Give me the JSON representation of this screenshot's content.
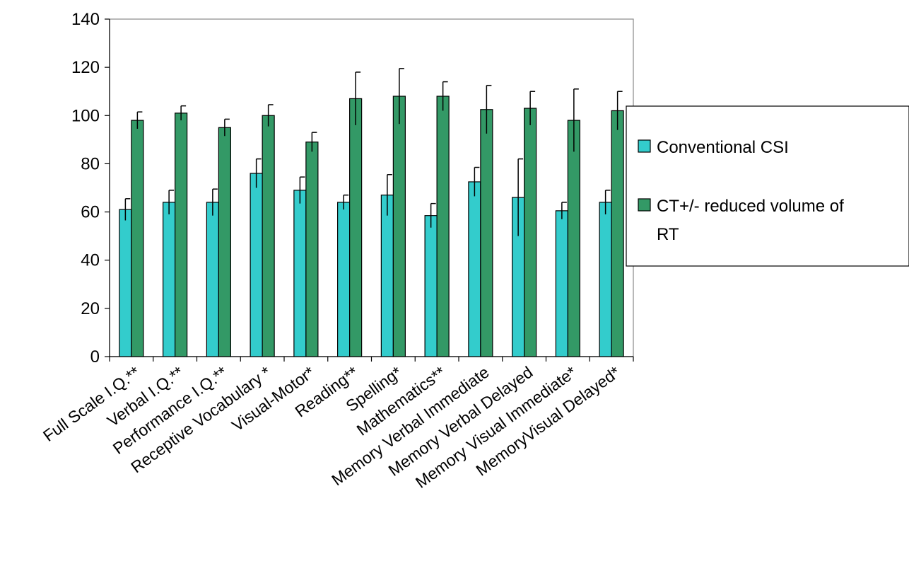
{
  "chart_data": {
    "type": "bar",
    "categories": [
      "Full Scale I.Q.**",
      "Verbal I.Q.**",
      "Performance I.Q.**",
      "Receptive Vocabulary *",
      "Visual-Motor*",
      "Reading**",
      "Spelling*",
      "Mathematics**",
      "Memory Verbal Immediate",
      "Memory Verbal  Delayed",
      "Memory Visual Immediate*",
      "MemoryVisual Delayed*"
    ],
    "series": [
      {
        "name": "Conventional CSI",
        "color": "#33cccc",
        "values": [
          61,
          64,
          64,
          76,
          69,
          64,
          67,
          58.5,
          72.5,
          66,
          60.5,
          64
        ],
        "errors": [
          4.5,
          5,
          5.5,
          6,
          5.5,
          3,
          8.5,
          5,
          6,
          16,
          3.5,
          5
        ]
      },
      {
        "name": "CT+/- reduced volume of RT",
        "color": "#339966",
        "values": [
          98,
          101,
          95,
          100,
          89,
          107,
          108,
          108,
          102.5,
          103,
          98,
          102
        ],
        "errors": [
          3.5,
          3,
          3.5,
          4.5,
          4,
          11,
          11.5,
          6,
          10,
          7,
          13,
          8
        ]
      }
    ],
    "ylim": [
      0,
      140
    ],
    "yticks": [
      "0",
      "20",
      "40",
      "60",
      "80",
      "100",
      "120",
      "140"
    ],
    "legend_position": "right",
    "grid": false,
    "title": "",
    "xlabel": "",
    "ylabel": ""
  },
  "legend": {
    "items": [
      {
        "label": "Conventional CSI"
      },
      {
        "label": "CT+/- reduced volume of",
        "label_line2": "RT"
      }
    ]
  }
}
